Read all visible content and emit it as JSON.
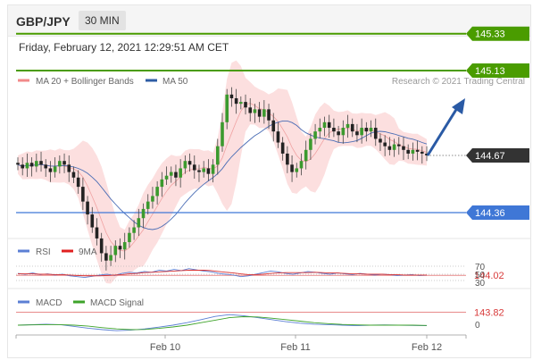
{
  "header": {
    "symbol": "GBP/JPY",
    "timeframe": "30 MIN",
    "timestamp": "Friday, February 12, 2021 12:29:51 AM CET"
  },
  "legend": {
    "bollinger": "MA 20 + Bollinger Bands",
    "ma50": "MA 50",
    "research": "Research © 2021 Trading Central",
    "rsi": "RSI",
    "rsi_ma": "9MA",
    "macd": "MACD",
    "macd_signal": "MACD Signal"
  },
  "colors": {
    "resistance": "#4a9c00",
    "pivot": "#3f77d6",
    "support": "#d83a3a",
    "current": "#333333",
    "arrow": "#2a5aa5",
    "ma50": "#2e5ca5",
    "bollinger": "#f39a9a",
    "macd": "#5b7fd4",
    "macd_signal": "#3ea32a"
  },
  "chart_data": [
    {
      "type": "candlestick",
      "title": "GBP/JPY",
      "levels": [
        {
          "kind": "resistance",
          "value": 145.33
        },
        {
          "kind": "resistance",
          "value": 145.13
        },
        {
          "kind": "current",
          "value": 144.67
        },
        {
          "kind": "pivot",
          "value": 144.36
        },
        {
          "kind": "support",
          "value": 144.02
        },
        {
          "kind": "support",
          "value": 143.82
        }
      ],
      "ylim": [
        143.78,
        145.45
      ],
      "x_tick_labels": [
        "Feb 10",
        "Feb 11",
        "Feb 12"
      ],
      "closes": [
        144.62,
        144.6,
        144.63,
        144.61,
        144.64,
        144.62,
        144.6,
        144.58,
        144.61,
        144.64,
        144.62,
        144.58,
        144.55,
        144.5,
        144.42,
        144.35,
        144.28,
        144.22,
        144.14,
        144.1,
        144.13,
        144.18,
        144.16,
        144.2,
        144.25,
        144.28,
        144.33,
        144.38,
        144.42,
        144.45,
        144.5,
        144.54,
        144.56,
        144.58,
        144.55,
        144.6,
        144.64,
        144.62,
        144.59,
        144.58,
        144.6,
        144.57,
        144.62,
        144.72,
        144.85,
        145.0,
        144.98,
        144.95,
        144.96,
        144.93,
        144.9,
        144.92,
        144.88,
        144.92,
        144.86,
        144.8,
        144.74,
        144.68,
        144.62,
        144.58,
        144.6,
        144.64,
        144.7,
        144.76,
        144.8,
        144.82,
        144.85,
        144.82,
        144.8,
        144.78,
        144.82,
        144.84,
        144.8,
        144.78,
        144.82,
        144.8,
        144.82,
        144.76,
        144.74,
        144.72,
        144.7,
        144.73,
        144.72,
        144.7,
        144.68,
        144.7,
        144.69,
        144.68,
        144.67
      ]
    },
    {
      "type": "line",
      "title": "RSI",
      "ylim": [
        25,
        75
      ],
      "y_tick_labels": [
        "70",
        "50",
        "30"
      ],
      "series": [
        {
          "name": "RSI",
          "values": [
            52,
            50,
            53,
            49,
            51,
            48,
            50,
            46,
            44,
            42,
            45,
            48,
            50,
            47,
            52,
            55,
            53,
            57,
            55,
            60,
            58,
            62,
            59,
            64,
            61,
            58,
            56,
            52,
            50,
            48,
            44,
            46,
            50,
            54,
            58,
            56,
            52,
            50,
            53,
            57,
            55,
            52,
            50,
            53,
            51,
            49,
            52,
            50,
            48,
            50,
            49,
            47,
            48,
            49,
            47,
            48
          ]
        },
        {
          "name": "9MA",
          "values": [
            51,
            51,
            51,
            50,
            50,
            49,
            49,
            48,
            47,
            46,
            46,
            46,
            47,
            48,
            49,
            51,
            52,
            54,
            55,
            56,
            57,
            58,
            59,
            60,
            60,
            60,
            59,
            57,
            55,
            53,
            51,
            49,
            49,
            50,
            52,
            53,
            54,
            54,
            54,
            54,
            55,
            54,
            53,
            53,
            52,
            51,
            51,
            50,
            50,
            50,
            49,
            49,
            48,
            48,
            48,
            48
          ]
        }
      ]
    },
    {
      "type": "line",
      "title": "MACD",
      "y_tick_labels": [
        "0"
      ],
      "series": [
        {
          "name": "MACD",
          "values": [
            0,
            0.02,
            0.04,
            0.02,
            -0.05,
            -0.12,
            -0.18,
            -0.22,
            -0.2,
            -0.15,
            -0.08,
            0,
            0.1,
            0.22,
            0.35,
            0.42,
            0.38,
            0.3,
            0.22,
            0.14,
            0.08,
            0.04,
            0.02,
            0,
            -0.02,
            0,
            0.01,
            0,
            -0.01,
            -0.02
          ]
        },
        {
          "name": "MACD Signal",
          "values": [
            0,
            0.01,
            0.02,
            0.02,
            0,
            -0.04,
            -0.1,
            -0.15,
            -0.18,
            -0.17,
            -0.13,
            -0.07,
            0,
            0.1,
            0.2,
            0.3,
            0.34,
            0.33,
            0.28,
            0.22,
            0.16,
            0.1,
            0.06,
            0.03,
            0.01,
            0,
            0,
            0,
            0,
            -0.01
          ]
        }
      ]
    }
  ]
}
